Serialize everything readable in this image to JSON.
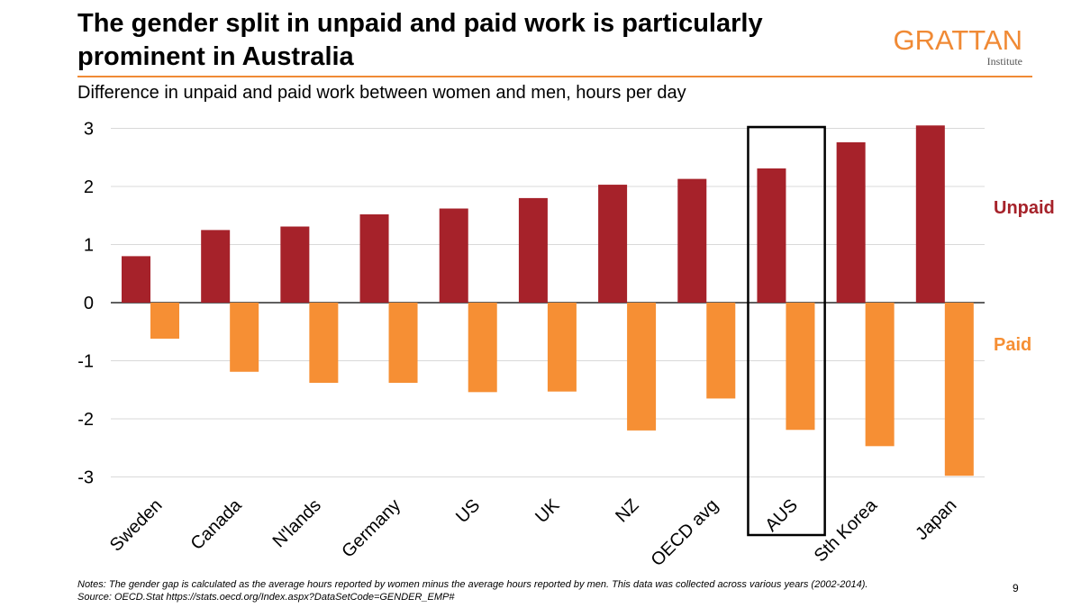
{
  "slide": {
    "title": "The gender split in unpaid and paid work is particularly prominent in Australia",
    "subtitle": "Difference in unpaid and paid work between women and men, hours per day",
    "logo_main": "GRATTAN",
    "logo_sub": "Institute",
    "notes": "Notes: The gender gap is calculated as the average hours reported by women minus the average hours reported by men. This data was collected across various years (2002-2014).",
    "source": "Source: OECD.Stat https://stats.oecd.org/Index.aspx?DataSetCode=GENDER_EMP#",
    "page_number": "9"
  },
  "colors": {
    "unpaid": "#a6222a",
    "paid": "#f68f34",
    "accent": "#f08a35",
    "grid": "#d9d9d9",
    "highlight": "#000000"
  },
  "chart_data": {
    "type": "bar",
    "categories": [
      "Sweden",
      "Canada",
      "N'lands",
      "Germany",
      "US",
      "UK",
      "NZ",
      "OECD avg",
      "AUS",
      "Sth Korea",
      "Japan"
    ],
    "series": [
      {
        "name": "Unpaid",
        "values": [
          0.8,
          1.25,
          1.31,
          1.52,
          1.62,
          1.8,
          2.03,
          2.13,
          2.31,
          2.76,
          3.05
        ]
      },
      {
        "name": "Paid",
        "values": [
          -0.62,
          -1.19,
          -1.38,
          -1.38,
          -1.54,
          -1.53,
          -2.2,
          -1.65,
          -2.19,
          -2.47,
          -2.98
        ]
      }
    ],
    "yticks": [
      "3",
      "2",
      "1",
      "0",
      "-1",
      "-2",
      "-3"
    ],
    "ylim": [
      -3,
      3
    ],
    "highlighted_category": "AUS",
    "legend": {
      "unpaid": "Unpaid",
      "paid": "Paid"
    },
    "grid": true
  }
}
